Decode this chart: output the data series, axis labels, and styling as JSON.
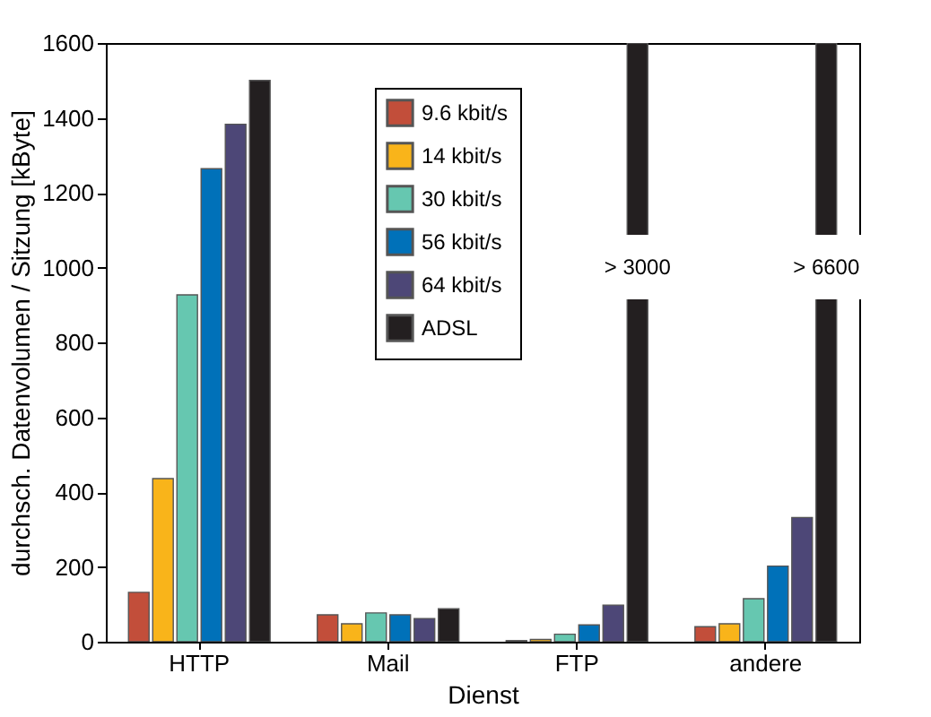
{
  "chart_data": {
    "type": "bar",
    "xlabel": "Dienst",
    "ylabel": "durchsch. Datenvolumen / Sitzung [kByte]",
    "categories": [
      "HTTP",
      "Mail",
      "FTP",
      "andere"
    ],
    "series": [
      {
        "name": "9.6 kbit/s",
        "color": "#c24e3a",
        "values": [
          132,
          72,
          3,
          40
        ]
      },
      {
        "name": "14 kbit/s",
        "color": "#f9b41a",
        "values": [
          436,
          48,
          6,
          48
        ]
      },
      {
        "name": "30 kbit/s",
        "color": "#66c7b0",
        "values": [
          927,
          77,
          20,
          115
        ]
      },
      {
        "name": "56 kbit/s",
        "color": "#0071b9",
        "values": [
          1264,
          72,
          45,
          202
        ]
      },
      {
        "name": "64 kbit/s",
        "color": "#4d4777",
        "values": [
          1383,
          62,
          98,
          332
        ]
      },
      {
        "name": "ADSL",
        "color": "#231f20",
        "values": [
          1500,
          88,
          1600,
          1600
        ]
      }
    ],
    "ylim": [
      0,
      1600
    ],
    "yticks": [
      0,
      200,
      400,
      600,
      800,
      1000,
      1200,
      1400,
      1600
    ],
    "annotations": [
      "> 3000",
      "> 6600"
    ],
    "legend": "top",
    "grid": false
  }
}
